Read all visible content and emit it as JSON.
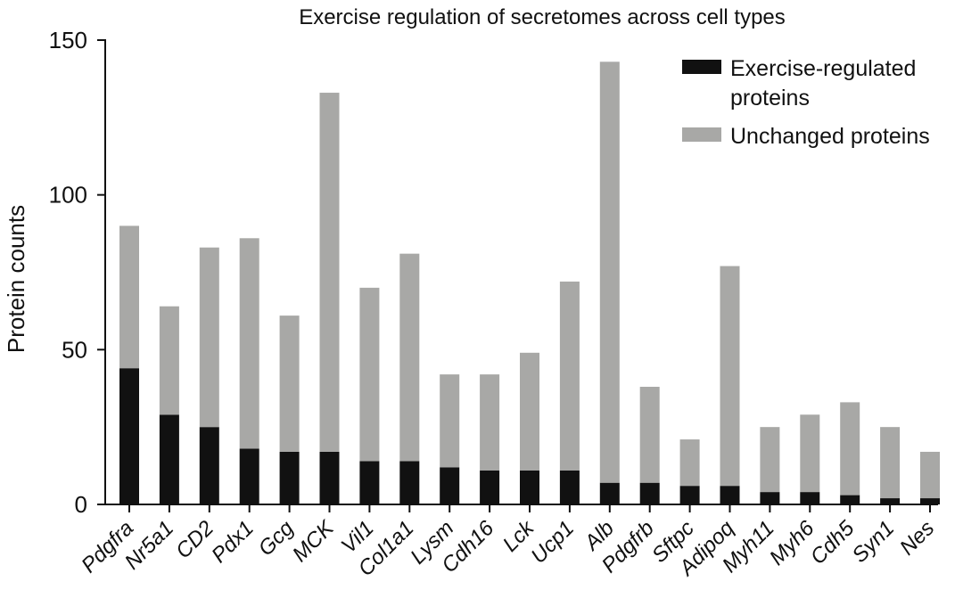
{
  "chart_data": {
    "type": "bar",
    "stacked": true,
    "title": "Exercise regulation of secretomes across cell types",
    "xlabel": "",
    "ylabel": "Protein counts",
    "ylim": [
      0,
      150
    ],
    "yticks": [
      0,
      50,
      100,
      150
    ],
    "categories": [
      "Pdgfra",
      "Nr5a1",
      "CD2",
      "Pdx1",
      "Gcg",
      "MCK",
      "Vil1",
      "Col1a1",
      "Lysm",
      "Cdh16",
      "Lck",
      "Ucp1",
      "Alb",
      "Pdgfrb",
      "Sftpc",
      "Adipoq",
      "Myh11",
      "Myh6",
      "Cdh5",
      "Syn1",
      "Nes"
    ],
    "series": [
      {
        "name": "Exercise-regulated proteins",
        "color": "#111111",
        "values": [
          44,
          29,
          25,
          18,
          17,
          17,
          14,
          14,
          12,
          11,
          11,
          11,
          7,
          7,
          6,
          6,
          4,
          4,
          3,
          2,
          2
        ]
      },
      {
        "name": "Unchanged proteins",
        "color": "#a8a8a6",
        "values": [
          46,
          35,
          58,
          68,
          44,
          116,
          56,
          67,
          30,
          31,
          38,
          61,
          136,
          31,
          15,
          71,
          21,
          25,
          30,
          23,
          15
        ]
      }
    ],
    "legend": {
      "position": "top-right",
      "lines": [
        [
          "Exercise-regulated",
          "proteins"
        ],
        [
          "Unchanged proteins"
        ]
      ]
    },
    "grid": false
  }
}
